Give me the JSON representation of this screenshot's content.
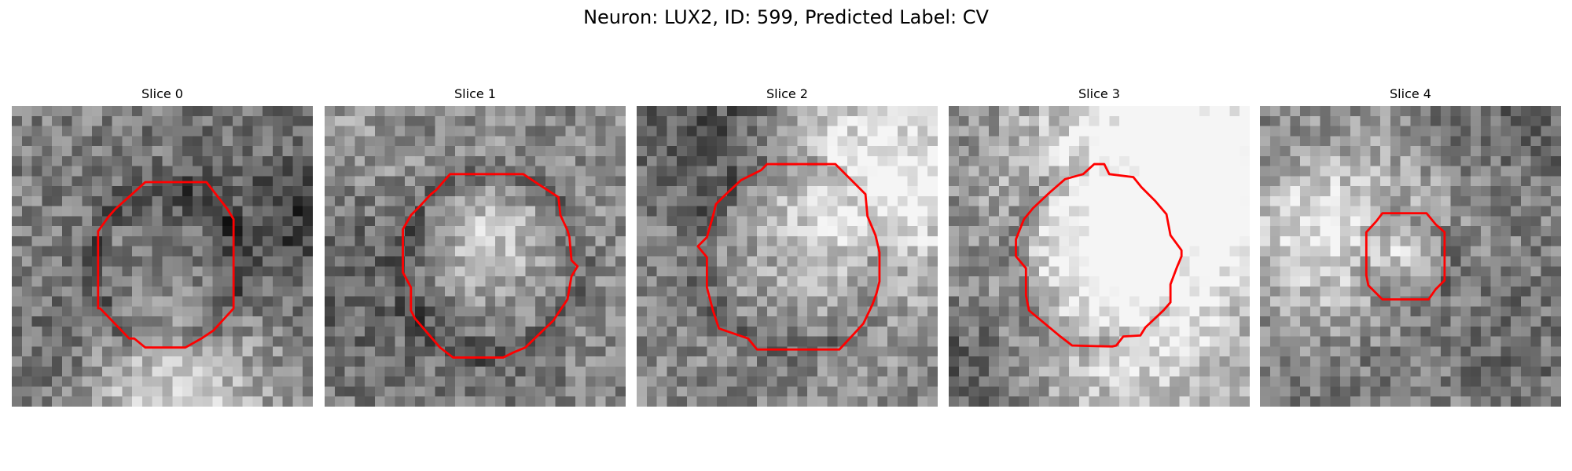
{
  "figure": {
    "title": "Neuron: LUX2, ID: 599, Predicted Label: CV"
  },
  "panels": [
    {
      "title": "Slice 0",
      "seed": 11,
      "brightness": 0.0
    },
    {
      "title": "Slice 1",
      "seed": 23,
      "brightness": 0.03
    },
    {
      "title": "Slice 2",
      "seed": 37,
      "brightness": 0.02
    },
    {
      "title": "Slice 3",
      "seed": 41,
      "brightness": 0.01
    },
    {
      "title": "Slice 4",
      "seed": 53,
      "brightness": -0.02
    }
  ],
  "colors": {
    "outline": "#ff0000"
  },
  "image_style": "grayscale pixel patch with red segmentation contour"
}
